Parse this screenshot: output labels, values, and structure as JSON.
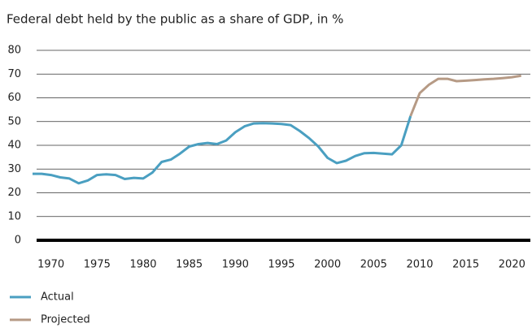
{
  "chart_data": {
    "type": "line",
    "title": "Federal debt held by the public as a share of GDP, in %",
    "x": [
      1968,
      1969,
      1970,
      1971,
      1972,
      1973,
      1974,
      1975,
      1976,
      1977,
      1978,
      1979,
      1980,
      1981,
      1982,
      1983,
      1984,
      1985,
      1986,
      1987,
      1988,
      1989,
      1990,
      1991,
      1992,
      1993,
      1994,
      1995,
      1996,
      1997,
      1998,
      1999,
      2000,
      2001,
      2002,
      2003,
      2004,
      2005,
      2006,
      2007,
      2008,
      2009,
      2010,
      2011,
      2012,
      2013,
      2014,
      2015,
      2016,
      2017,
      2018,
      2019,
      2020,
      2021
    ],
    "series": [
      {
        "name": "Actual",
        "color": "#4a9fc1",
        "values": [
          28,
          28,
          27.5,
          26.5,
          26,
          24,
          25.2,
          27.5,
          27.8,
          27.5,
          25.8,
          26.3,
          26,
          28.5,
          33,
          34,
          36.5,
          39.5,
          40.5,
          41,
          40.5,
          42,
          45.5,
          48,
          49.2,
          49.3,
          49.2,
          49,
          48.5,
          46,
          43,
          39.5,
          34.7,
          32.5,
          33.5,
          35.5,
          36.7,
          36.8,
          36.5,
          36.2,
          40,
          52.3,
          null,
          null,
          null,
          null,
          null,
          null,
          null,
          null,
          null,
          null,
          null,
          null
        ]
      },
      {
        "name": "Projected",
        "color": "#b69a85",
        "values": [
          null,
          null,
          null,
          null,
          null,
          null,
          null,
          null,
          null,
          null,
          null,
          null,
          null,
          null,
          null,
          null,
          null,
          null,
          null,
          null,
          null,
          null,
          null,
          null,
          null,
          null,
          null,
          null,
          null,
          null,
          null,
          null,
          null,
          null,
          null,
          null,
          null,
          null,
          null,
          null,
          null,
          52.3,
          62,
          65.5,
          68,
          68,
          67,
          67.2,
          67.5,
          67.8,
          68,
          68.3,
          68.7,
          69.3
        ]
      }
    ],
    "xlim": [
      1968,
      2022
    ],
    "xticks": [
      1970,
      1975,
      1980,
      1985,
      1990,
      1995,
      2000,
      2005,
      2010,
      2015,
      2020
    ],
    "ylim": [
      0,
      80
    ],
    "yticks": [
      0,
      10,
      20,
      30,
      40,
      50,
      60,
      70,
      80
    ],
    "grid": true
  }
}
